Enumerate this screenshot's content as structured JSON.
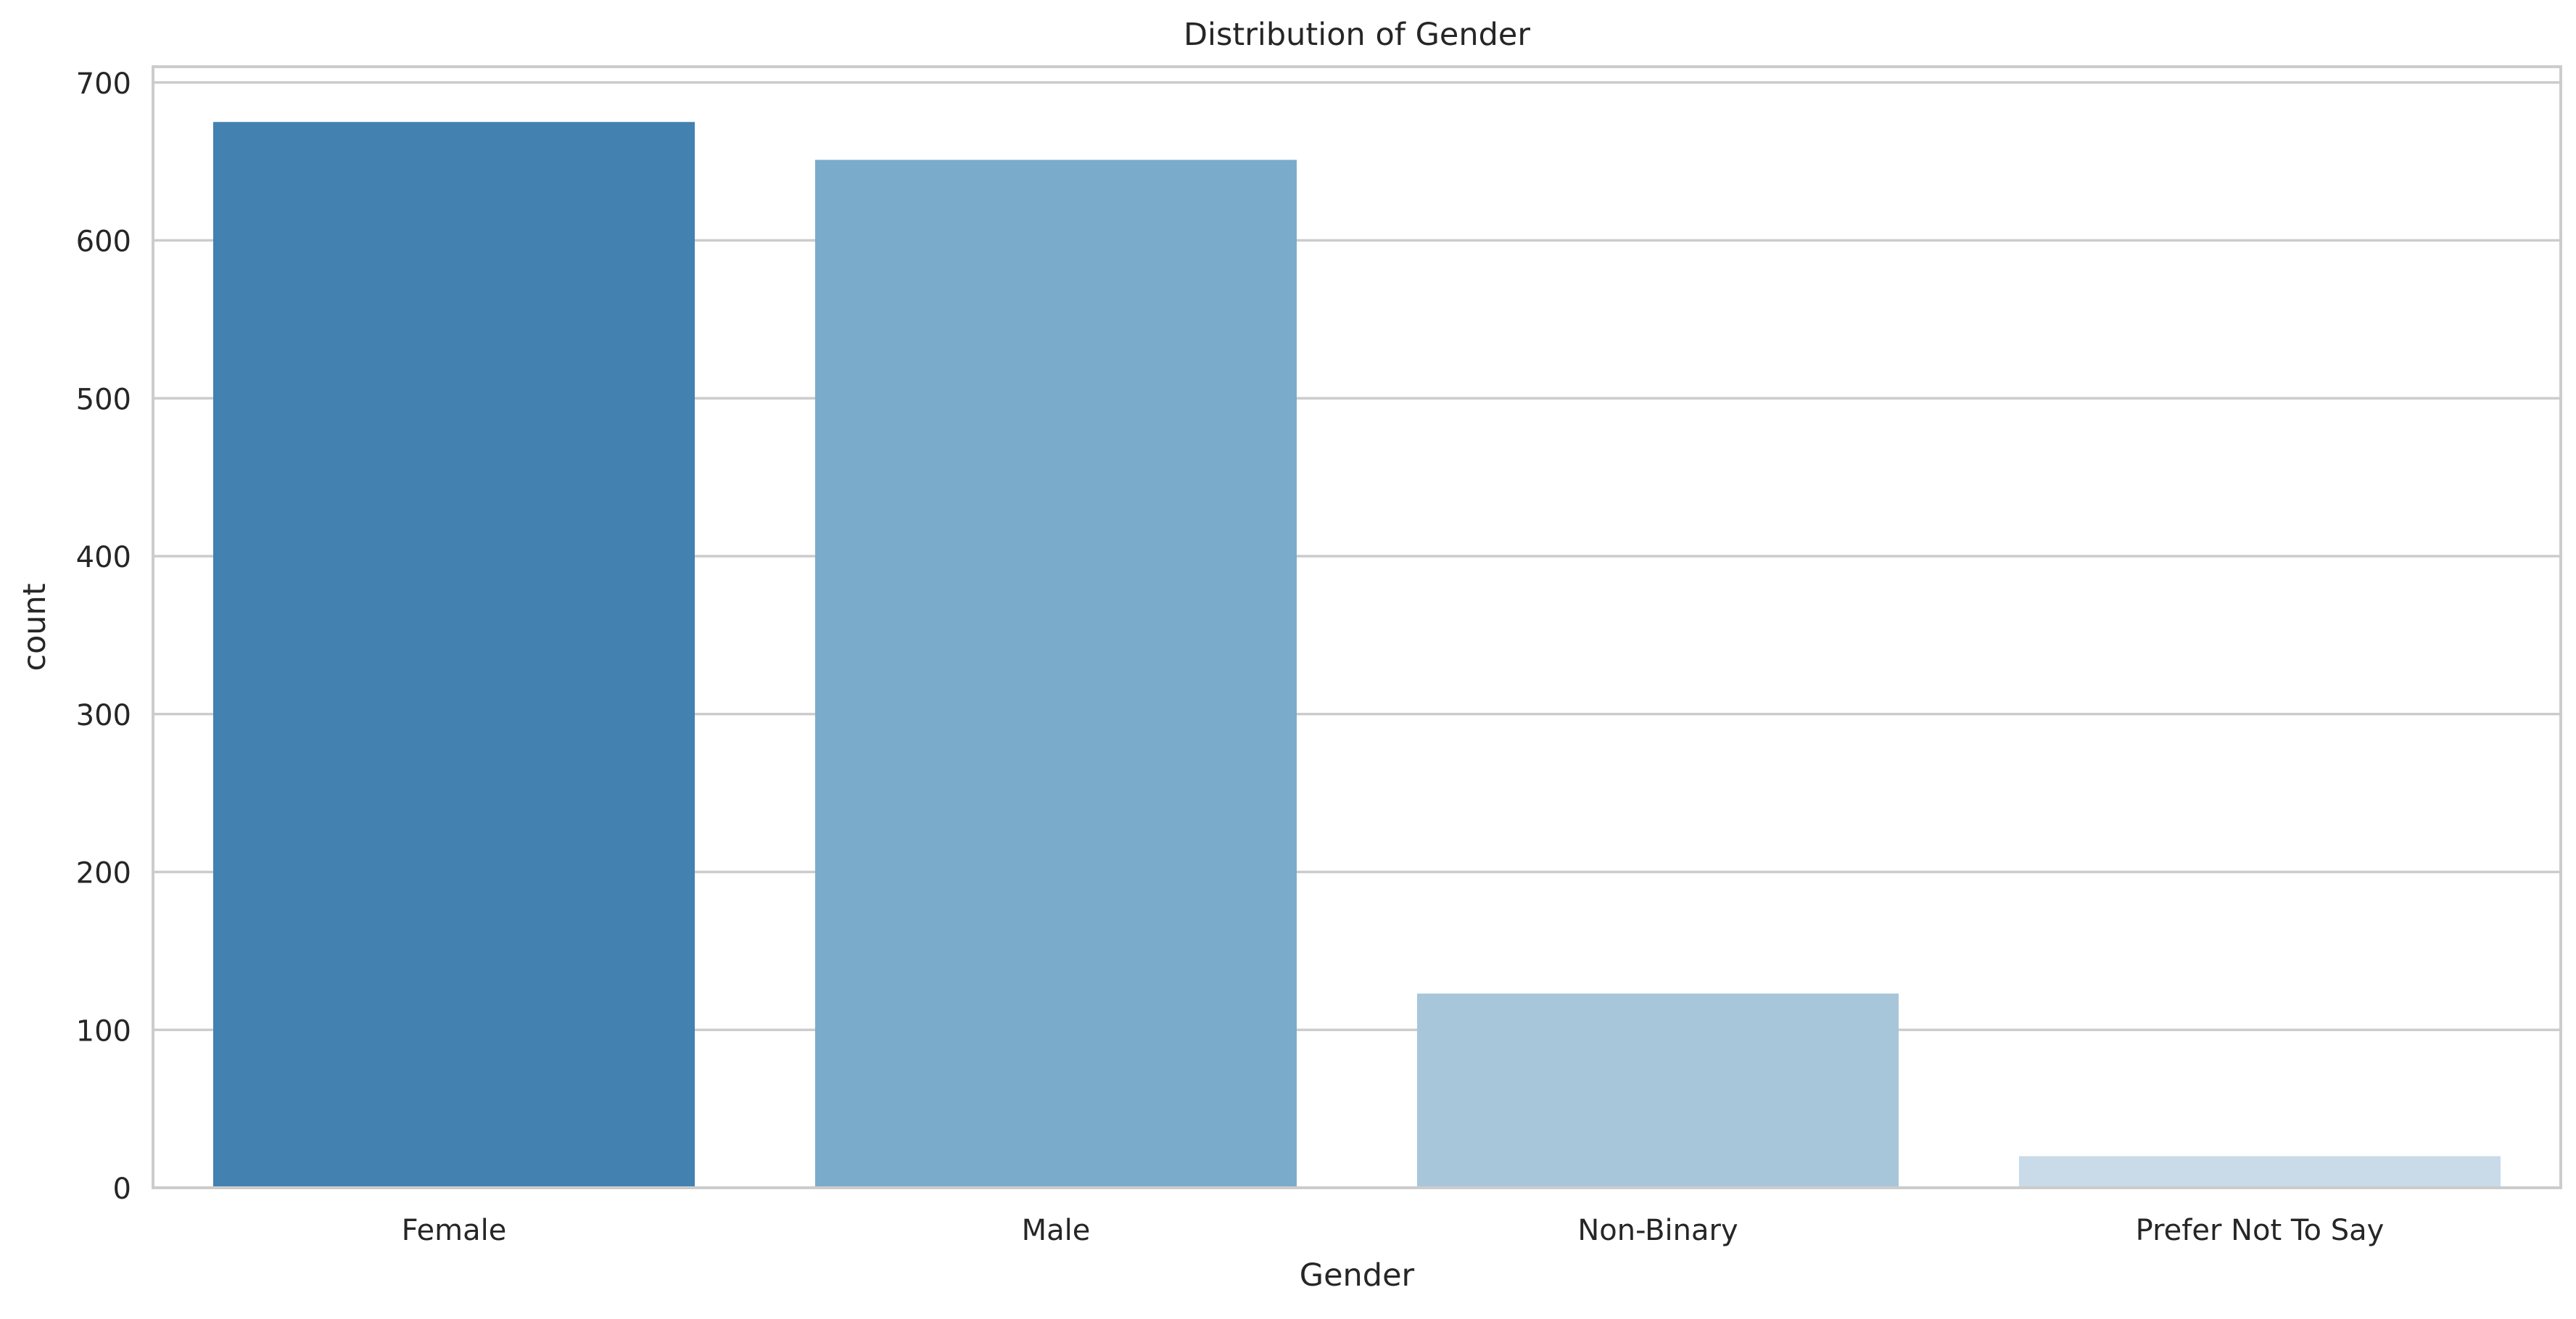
{
  "chart_data": {
    "type": "bar",
    "title": "Distribution of Gender",
    "xlabel": "Gender",
    "ylabel": "count",
    "categories": [
      "Female",
      "Male",
      "Non-Binary",
      "Prefer Not To Say"
    ],
    "values": [
      675,
      651,
      123,
      20
    ],
    "ylim": [
      0,
      710
    ],
    "yticks": [
      0,
      100,
      200,
      300,
      400,
      500,
      600,
      700
    ],
    "grid": "y-major",
    "legend": "none",
    "colors": [
      "#4281b0",
      "#7aabcb",
      "#a7c6d9",
      "#c9dbe9"
    ],
    "grid_color": "#cccccc",
    "axis_color": "#cccccc",
    "background": "#ffffff"
  }
}
